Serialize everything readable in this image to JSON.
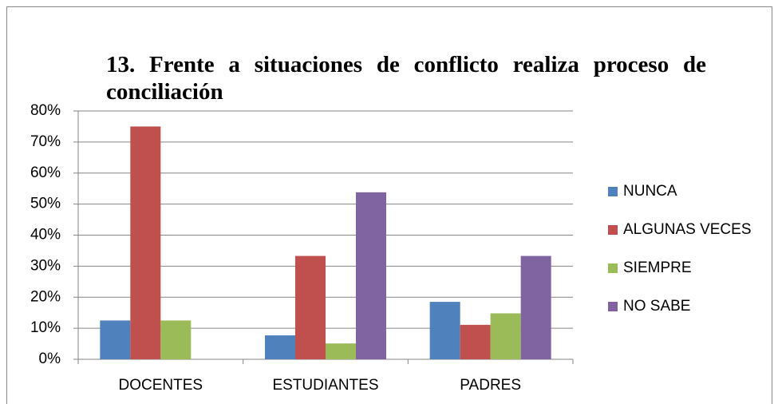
{
  "chart_data": {
    "type": "bar",
    "title": "13. Frente a situaciones de conflicto realiza proceso de conciliación",
    "categories": [
      "DOCENTES",
      "ESTUDIANTES",
      "PADRES"
    ],
    "series": [
      {
        "name": "NUNCA",
        "color": "#4f81bd",
        "values": [
          12.5,
          7.7,
          18.5
        ]
      },
      {
        "name": "ALGUNAS VECES",
        "color": "#c0504d",
        "values": [
          75,
          33.3,
          11.1
        ]
      },
      {
        "name": "SIEMPRE",
        "color": "#9bbb59",
        "values": [
          12.5,
          5.1,
          14.8
        ]
      },
      {
        "name": "NO SABE",
        "color": "#8064a2",
        "values": [
          0,
          53.8,
          33.3
        ]
      }
    ],
    "ylim": [
      0,
      80
    ],
    "yticks": [
      {
        "value": 0,
        "label": "0%"
      },
      {
        "value": 10,
        "label": "10%"
      },
      {
        "value": 20,
        "label": "20%"
      },
      {
        "value": 30,
        "label": "30%"
      },
      {
        "value": 40,
        "label": "40%"
      },
      {
        "value": 50,
        "label": "50%"
      },
      {
        "value": 60,
        "label": "60%"
      },
      {
        "value": 70,
        "label": "70%"
      },
      {
        "value": 80,
        "label": "80%"
      }
    ],
    "grid": true,
    "legend": "right"
  }
}
